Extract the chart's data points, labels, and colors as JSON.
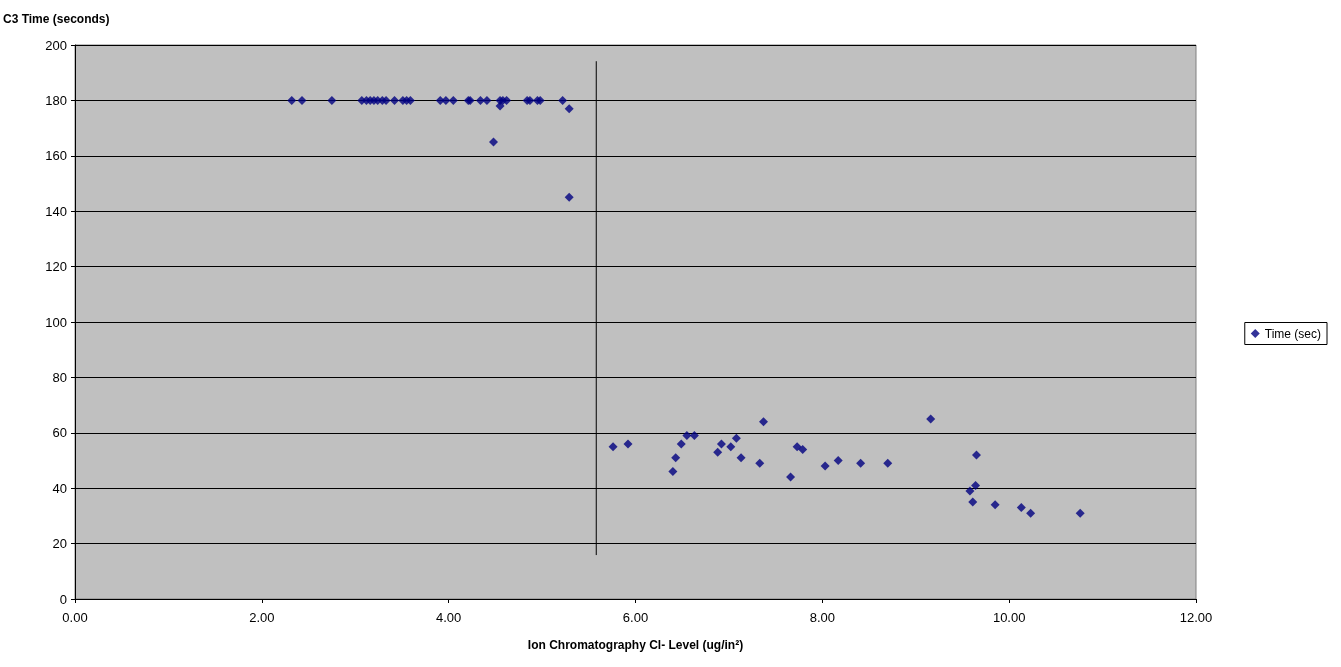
{
  "chart_data": {
    "type": "scatter",
    "xlabel": "Ion Chromatography Cl- Level (ug/in²)",
    "ylabel": "C3 Time (seconds)",
    "series": [
      {
        "name": "Time (sec)",
        "color": "#000080",
        "marker": "diamond",
        "x": [
          2.32,
          2.43,
          2.75,
          3.07,
          3.12,
          3.16,
          3.2,
          3.24,
          3.29,
          3.33,
          3.42,
          3.51,
          3.55,
          3.59,
          3.91,
          3.97,
          4.05,
          4.21,
          4.23,
          4.34,
          4.41,
          4.55,
          4.58,
          4.62,
          4.84,
          4.87,
          4.95,
          4.98,
          5.22,
          4.55,
          4.48,
          5.29,
          5.29,
          5.76,
          5.92,
          6.4,
          6.43,
          6.49,
          6.55,
          6.63,
          6.88,
          6.92,
          7.02,
          7.08,
          7.13,
          7.33,
          7.37,
          7.66,
          7.73,
          7.79,
          8.03,
          8.17,
          8.41,
          8.7,
          9.16,
          9.65,
          9.64,
          9.58,
          9.61,
          9.85,
          10.13,
          10.23,
          10.76
        ],
        "values": [
          180,
          180,
          180,
          180,
          180,
          180,
          180,
          180,
          180,
          180,
          180,
          180,
          180,
          180,
          180,
          180,
          180,
          180,
          180,
          180,
          180,
          180,
          180,
          180,
          180,
          180,
          180,
          180,
          180,
          178,
          165,
          177,
          145,
          55,
          56,
          46,
          51,
          56,
          59,
          59,
          53,
          56,
          55,
          58,
          51,
          49,
          64,
          44,
          55,
          54,
          48,
          50,
          49,
          49,
          65,
          52,
          41,
          39,
          35,
          34,
          33,
          31,
          31
        ]
      },
      {
        "type": "line",
        "color": "#000000",
        "marker": "none",
        "x": [
          5.58,
          5.58
        ],
        "values": [
          194,
          16
        ]
      }
    ],
    "xlim": [
      0,
      12
    ],
    "xticks": [
      {
        "value": 0,
        "label": "0.00"
      },
      {
        "value": 2,
        "label": "2.00"
      },
      {
        "value": 4,
        "label": "4.00"
      },
      {
        "value": 6,
        "label": "6.00"
      },
      {
        "value": 8,
        "label": "8.00"
      },
      {
        "value": 10,
        "label": "10.00"
      },
      {
        "value": 12,
        "label": "12.00"
      }
    ],
    "ylim": [
      0,
      200
    ],
    "yticks": [
      0,
      20,
      40,
      60,
      80,
      100,
      120,
      140,
      160,
      180,
      200
    ],
    "grid": "y",
    "legend": "right"
  }
}
